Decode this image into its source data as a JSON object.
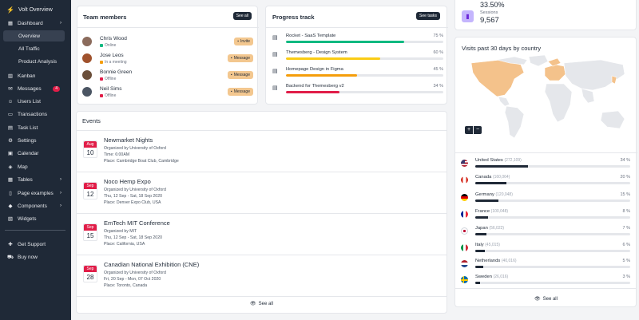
{
  "sidebar": {
    "brand": "Volt Overview",
    "dashboard": "Dashboard",
    "overview": "Overview",
    "all_traffic": "All Traffic",
    "product_analysis": "Product Analysis",
    "kanban": "Kanban",
    "messages": "Messages",
    "messages_badge": "4",
    "users_list": "Users List",
    "transactions": "Transactions",
    "task_list": "Task List",
    "settings": "Settings",
    "calendar": "Calendar",
    "map": "Map",
    "tables": "Tables",
    "page_examples": "Page examples",
    "components": "Components",
    "widgets": "Widgets",
    "get_support": "Get Support",
    "buy_now": "Buy now"
  },
  "team": {
    "title": "Team members",
    "see_all": "See all",
    "members": [
      {
        "name": "Chris Wood",
        "status": "Online",
        "status_color": "#10b981",
        "action": "Invite"
      },
      {
        "name": "Jose Leos",
        "status": "In a meeting",
        "status_color": "#f59e0b",
        "action": "Message"
      },
      {
        "name": "Bonnie Green",
        "status": "Offline",
        "status_color": "#e11d48",
        "action": "Message"
      },
      {
        "name": "Neil Sims",
        "status": "Offline",
        "status_color": "#e11d48",
        "action": "Message"
      }
    ]
  },
  "progress": {
    "title": "Progress track",
    "see_tasks": "See tasks",
    "items": [
      {
        "name": "Rocket - SaaS Template",
        "pct_label": "75 %",
        "value": 75,
        "color": "#10b981"
      },
      {
        "name": "Themesberg - Design System",
        "pct_label": "60 %",
        "value": 60,
        "color": "#facc15"
      },
      {
        "name": "Homepage Design in Figma",
        "pct_label": "45 %",
        "value": 45,
        "color": "#f59e0b"
      },
      {
        "name": "Backend for Themesberg v2",
        "pct_label": "34 %",
        "value": 34,
        "color": "#e11d48"
      }
    ]
  },
  "events": {
    "title": "Events",
    "see_all": "See all",
    "items": [
      {
        "month": "Aug",
        "day": "10",
        "title": "Newmarket Nights",
        "organizer": "Organized by University of Oxford",
        "time": "Time: 6:00AM",
        "place": "Place: Cambridge Boat Club, Cambridge"
      },
      {
        "month": "Sep",
        "day": "12",
        "title": "Noco Hemp Expo",
        "organizer": "Organized by University of Oxford",
        "time": "Thu, 12 Sep - Sat, 18 Sep 2020",
        "place": "Place: Denver Expo Club, USA"
      },
      {
        "month": "Sep",
        "day": "15",
        "title": "EmTech MIT Conference",
        "organizer": "Organized by MIT",
        "time": "Thu, 12 Sep - Sat, 18 Sep 2020",
        "place": "Place: California, USA"
      },
      {
        "month": "Sep",
        "day": "28",
        "title": "Canadian National Exhibition (CNE)",
        "organizer": "Organized by University of Oxford",
        "time": "Fri, 20 Sep - Mon, 07 Oct 2020",
        "place": "Place: Toronto, Canada"
      }
    ]
  },
  "stats": {
    "top_value": "33.50%",
    "sessions_label": "Sessions",
    "sessions_value": "9,567"
  },
  "visits": {
    "title": "Visits past 30 days by country",
    "zoom_in": "+",
    "zoom_out": "−",
    "see_all": "See all",
    "countries": [
      {
        "name": "United States",
        "count": "(272,109)",
        "pct_label": "34 %",
        "value": 34
      },
      {
        "name": "Canada",
        "count": "(160,064)",
        "pct_label": "20 %",
        "value": 20
      },
      {
        "name": "Germany",
        "count": "(120,048)",
        "pct_label": "15 %",
        "value": 15
      },
      {
        "name": "France",
        "count": "(100,048)",
        "pct_label": "8 %",
        "value": 8
      },
      {
        "name": "Japan",
        "count": "(56,022)",
        "pct_label": "7 %",
        "value": 7
      },
      {
        "name": "Italy",
        "count": "(45,015)",
        "pct_label": "6 %",
        "value": 6
      },
      {
        "name": "Netherlands",
        "count": "(40,016)",
        "pct_label": "5 %",
        "value": 5
      },
      {
        "name": "Sweden",
        "count": "(26,016)",
        "pct_label": "3 %",
        "value": 3
      }
    ]
  }
}
